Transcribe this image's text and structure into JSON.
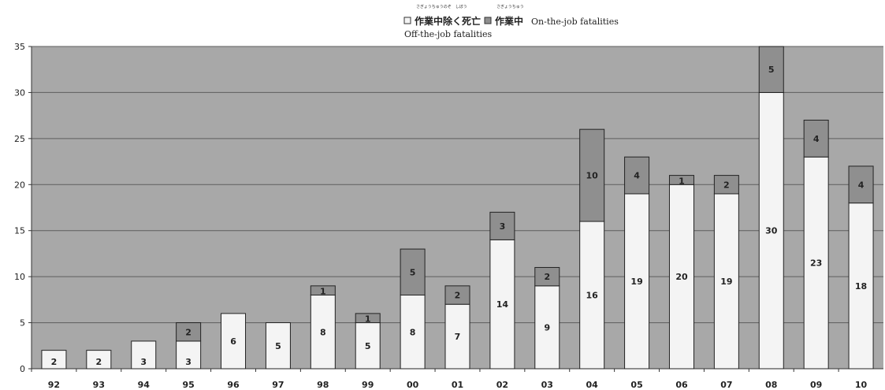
{
  "chart_data": {
    "type": "bar",
    "stacked": true,
    "categories": [
      "92",
      "93",
      "94",
      "95",
      "96",
      "97",
      "98",
      "99",
      "00",
      "01",
      "02",
      "03",
      "04",
      "05",
      "06",
      "07",
      "08",
      "09",
      "10"
    ],
    "series": [
      {
        "name": "作業中除く死亡 Off-the-job fatalities",
        "label_jp": "作業中除く死亡",
        "ruby": "さぎょうちゅうのぞ　しぼう",
        "label_en": "Off-the-job fatalities",
        "color": "#f4f4f4",
        "values": [
          2,
          2,
          3,
          3,
          6,
          5,
          8,
          5,
          8,
          7,
          14,
          9,
          16,
          19,
          20,
          19,
          30,
          23,
          18
        ]
      },
      {
        "name": "作業中 On-the-job fatalities",
        "label_jp": "作業中",
        "ruby": "さぎょうちゅう",
        "label_en": "On-the-job fatalities",
        "color": "#8f8f8f",
        "values": [
          0,
          0,
          0,
          2,
          0,
          0,
          1,
          1,
          5,
          2,
          3,
          2,
          10,
          4,
          1,
          2,
          5,
          4,
          4
        ]
      }
    ],
    "ylim": [
      0,
      35
    ],
    "yticks": [
      "0",
      "5",
      "10",
      "15",
      "20",
      "25",
      "30",
      "35"
    ],
    "grid": true,
    "legend_position": "top-center",
    "plot_background": "#a8a8a8"
  }
}
